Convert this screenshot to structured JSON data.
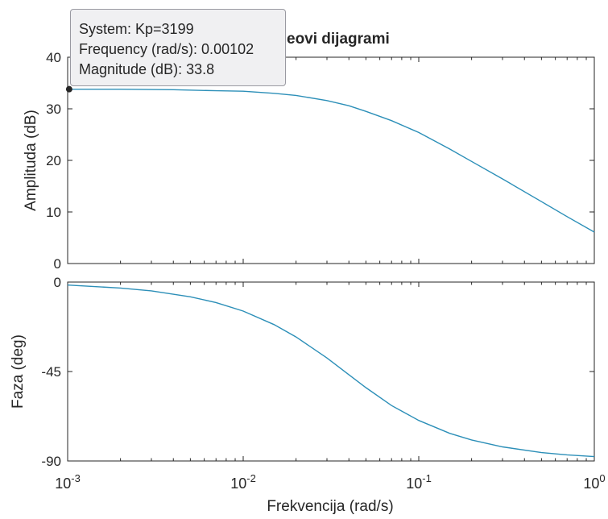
{
  "chart_data": {
    "type": "line",
    "title": "eovi dijagrami",
    "xlabel": "Frekvencija  (rad/s)",
    "xscale": "log",
    "xlim": [
      0.001,
      1
    ],
    "x_ticks": [
      {
        "value": 0.001,
        "base": "10",
        "exp": "-3"
      },
      {
        "value": 0.01,
        "base": "10",
        "exp": "-2"
      },
      {
        "value": 0.1,
        "base": "10",
        "exp": "-1"
      },
      {
        "value": 1,
        "base": "10",
        "exp": "0"
      }
    ],
    "color": "#2c8fb8",
    "grid": false,
    "panels": [
      {
        "name": "magnitude",
        "ylabel": "Amplituda (dB)",
        "ylim": [
          0,
          40
        ],
        "y_ticks": [
          0,
          10,
          20,
          30,
          40
        ],
        "series": [
          {
            "x": [
              0.001,
              0.002,
              0.004,
              0.007,
              0.01,
              0.015,
              0.02,
              0.03,
              0.04,
              0.05,
              0.07,
              0.1,
              0.15,
              0.2,
              0.3,
              0.5,
              0.7,
              1
            ],
            "y": [
              33.8,
              33.8,
              33.7,
              33.5,
              33.4,
              33.0,
              32.6,
              31.6,
              30.6,
              29.5,
              27.7,
              25.4,
              22.2,
              19.8,
              16.4,
              12.0,
              9.1,
              6.1
            ]
          }
        ]
      },
      {
        "name": "phase",
        "ylabel": "Faza (deg)",
        "ylim": [
          -90,
          0
        ],
        "y_ticks": [
          0,
          -45,
          -90
        ],
        "series": [
          {
            "x": [
              0.001,
              0.002,
              0.003,
              0.005,
              0.007,
              0.01,
              0.015,
              0.02,
              0.03,
              0.04,
              0.05,
              0.07,
              0.1,
              0.15,
              0.2,
              0.3,
              0.5,
              0.7,
              1
            ],
            "y": [
              -1.5,
              -3.0,
              -4.4,
              -7.4,
              -10.3,
              -14.6,
              -21.4,
              -27.6,
              -38.2,
              -46.6,
              -53.1,
              -62.1,
              -69.6,
              -76.1,
              -79.4,
              -82.9,
              -85.8,
              -86.9,
              -87.8
            ]
          }
        ]
      }
    ]
  },
  "datatip": {
    "line1": "System: Kp=3199",
    "line2": "Frequency (rad/s): 0.00102",
    "line3": "Magnitude (dB): 33.8",
    "x": 0.00102,
    "y": 33.8
  }
}
